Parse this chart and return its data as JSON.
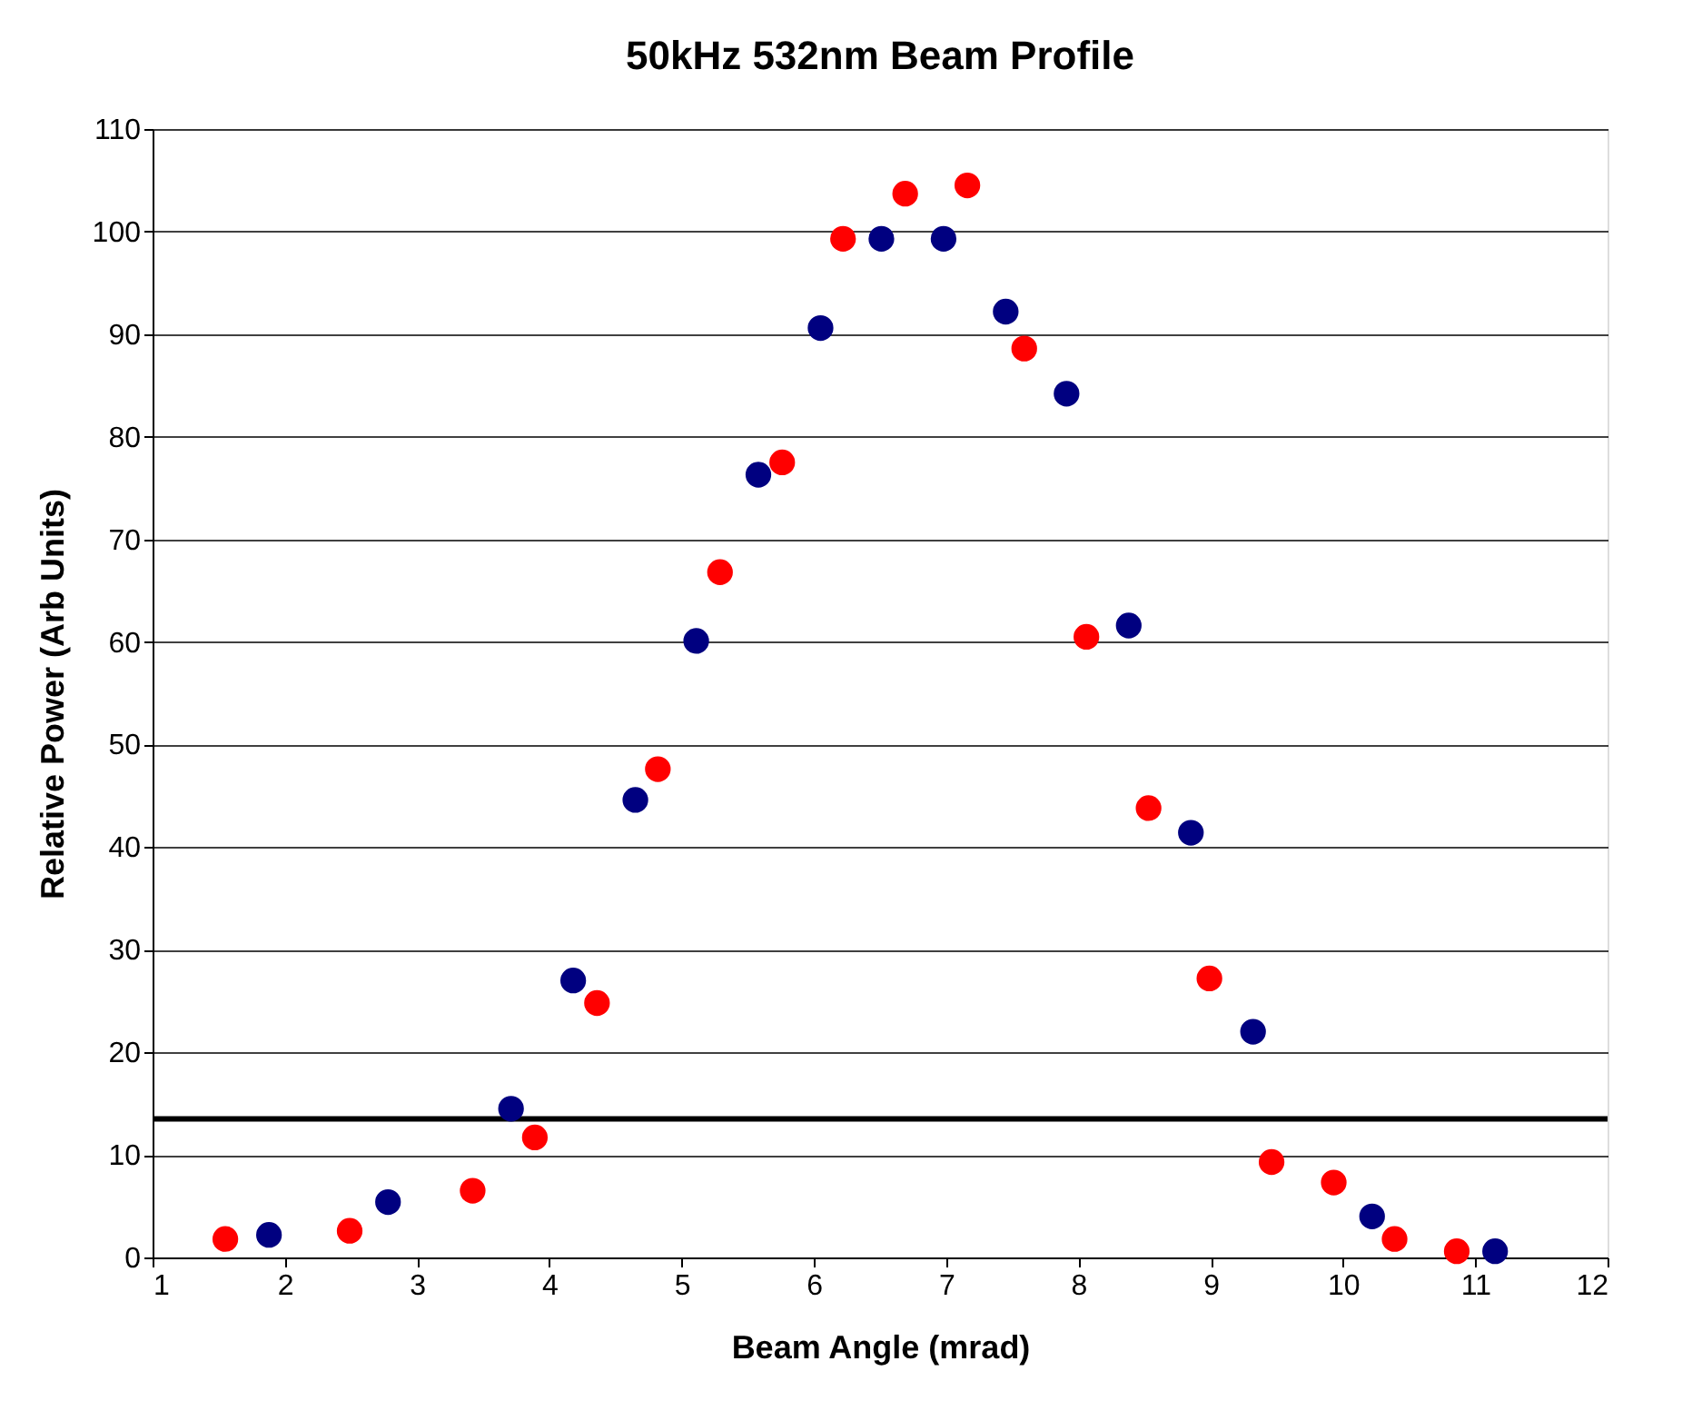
{
  "chart_data": {
    "type": "scatter",
    "title": "50kHz 532nm Beam Profile",
    "xlabel": "Beam Angle (mrad)",
    "ylabel": "Relative Power (Arb Units)",
    "xlim": [
      1,
      12
    ],
    "xticks": [
      1,
      2,
      3,
      4,
      5,
      6,
      7,
      8,
      9,
      10,
      11,
      12
    ],
    "ylim": [
      0,
      110
    ],
    "yticks": [
      0,
      10,
      20,
      30,
      40,
      50,
      60,
      70,
      80,
      90,
      100,
      110
    ],
    "grid": "y",
    "marker": "circle",
    "series": [
      {
        "color": "#ff0000",
        "x": [
          1.55,
          2.49,
          3.42,
          3.89,
          4.36,
          4.82,
          5.29,
          5.76,
          6.22,
          6.69,
          7.16,
          7.59,
          8.06,
          8.53,
          8.99,
          9.46,
          9.93,
          10.39,
          10.86
        ],
        "values": [
          1.8,
          2.6,
          6.5,
          11.7,
          24.8,
          47.6,
          66.8,
          77.5,
          99.3,
          103.7,
          104.5,
          88.6,
          60.5,
          43.8,
          27.2,
          9.3,
          7.3,
          1.8,
          0.6
        ]
      },
      {
        "color": "#000080",
        "x": [
          1.88,
          2.78,
          3.71,
          4.18,
          4.65,
          5.11,
          5.58,
          6.05,
          6.51,
          6.98,
          7.45,
          7.91,
          8.38,
          8.85,
          9.32,
          10.22,
          11.15
        ],
        "values": [
          2.2,
          5.4,
          14.5,
          27.0,
          44.6,
          60.1,
          76.3,
          90.6,
          99.3,
          99.3,
          92.2,
          84.2,
          61.6,
          41.4,
          22.0,
          4.0,
          0.6
        ]
      }
    ],
    "ref_lines": [
      {
        "axis": "y",
        "value": 13.5,
        "label": null,
        "color": "#000000",
        "line_style": "solid"
      }
    ]
  }
}
